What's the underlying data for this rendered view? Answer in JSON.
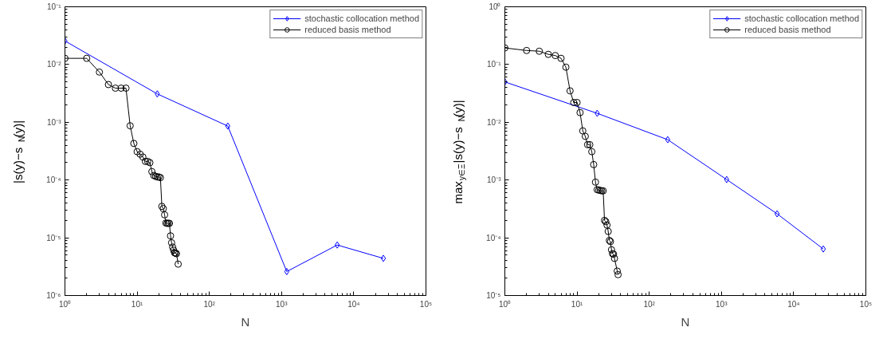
{
  "chart_data": [
    {
      "type": "line",
      "xlabel": "N",
      "ylabel": "|s(y)−s$_{N}$(y)|",
      "log": "xy",
      "grid": false,
      "legend": "top right",
      "line_style": "solid",
      "xlim": [
        1,
        100000
      ],
      "ylim": [
        1e-06,
        0.1
      ],
      "xticks": [
        {
          "value": 1,
          "label": "10⁰"
        },
        {
          "value": 10,
          "label": "10¹"
        },
        {
          "value": 100,
          "label": "10²"
        },
        {
          "value": 1000,
          "label": "10³"
        },
        {
          "value": 10000,
          "label": "10⁴"
        },
        {
          "value": 100000,
          "label": "10⁵"
        }
      ],
      "yticks": [
        {
          "value": 1e-06,
          "label": "10⁻⁶"
        },
        {
          "value": 1e-05,
          "label": "10⁻⁵"
        },
        {
          "value": 0.0001,
          "label": "10⁻⁴"
        },
        {
          "value": 0.001,
          "label": "10⁻³"
        },
        {
          "value": 0.01,
          "label": "10⁻²"
        },
        {
          "value": 0.1,
          "label": "10⁻¹"
        }
      ],
      "series": [
        {
          "name": "stochastic collocation method",
          "color": "#0000ff",
          "marker": "diamond",
          "x": [
            1,
            19,
            180,
            1180,
            5900,
            25700
          ],
          "values": [
            0.0256,
            0.0031,
            0.00086,
            2.6e-06,
            7.5e-06,
            4.4e-06
          ]
        },
        {
          "name": "reduced basis method",
          "color": "#000000",
          "marker": "circle",
          "x": [
            1,
            2,
            3,
            4,
            5,
            6,
            7,
            8,
            9,
            10,
            11,
            12,
            13,
            14,
            15,
            16,
            17,
            18,
            19,
            20,
            21,
            22,
            23,
            24,
            25,
            26,
            27,
            28,
            29,
            30,
            31,
            32,
            33,
            34,
            35,
            37
          ],
          "values": [
            0.0128,
            0.0128,
            0.0074,
            0.0045,
            0.0039,
            0.0039,
            0.0039,
            0.00087,
            0.00043,
            0.00031,
            0.00028,
            0.00025,
            0.00021,
            0.00021,
            0.0002,
            0.00014,
            0.00012,
            0.000116,
            0.000113,
            0.000113,
            0.00011,
            3.5e-05,
            3.2e-05,
            2.5e-05,
            1.8e-05,
            1.78e-05,
            1.78e-05,
            1.78e-05,
            1.08e-05,
            8.2e-06,
            6.9e-06,
            6.1e-06,
            5.5e-06,
            5.4e-06,
            5.3e-06,
            3.5e-06
          ]
        }
      ]
    },
    {
      "type": "line",
      "xlabel": "N",
      "ylabel": "max$_{y∈Ξ}$|s(y)−s$_{N}$(y)|",
      "log": "xy",
      "grid": false,
      "legend": "top right",
      "line_style": "solid",
      "xlim": [
        1,
        100000
      ],
      "ylim": [
        1e-05,
        1
      ],
      "xticks": [
        {
          "value": 1,
          "label": "10⁰"
        },
        {
          "value": 10,
          "label": "10¹"
        },
        {
          "value": 100,
          "label": "10²"
        },
        {
          "value": 1000,
          "label": "10³"
        },
        {
          "value": 10000,
          "label": "10⁴"
        },
        {
          "value": 100000,
          "label": "10⁵"
        }
      ],
      "yticks": [
        {
          "value": 1e-05,
          "label": "10⁻⁵"
        },
        {
          "value": 0.0001,
          "label": "10⁻⁴"
        },
        {
          "value": 0.001,
          "label": "10⁻³"
        },
        {
          "value": 0.01,
          "label": "10⁻²"
        },
        {
          "value": 0.1,
          "label": "10⁻¹"
        },
        {
          "value": 1,
          "label": "10⁰"
        }
      ],
      "series": [
        {
          "name": "stochastic collocation method",
          "color": "#0000ff",
          "marker": "diamond",
          "x": [
            1,
            19,
            180,
            1180,
            5900,
            25700
          ],
          "values": [
            0.05,
            0.0143,
            0.005,
            0.00102,
            0.00026,
            6.4e-05
          ]
        },
        {
          "name": "reduced basis method",
          "color": "#000000",
          "marker": "circle",
          "x": [
            1,
            2,
            3,
            4,
            5,
            6,
            7,
            8,
            9,
            10,
            11,
            12,
            13,
            14,
            15,
            16,
            17,
            18,
            19,
            20,
            21,
            22,
            23,
            24,
            25,
            26,
            27,
            28,
            29,
            30,
            31,
            32,
            33,
            36,
            37
          ],
          "values": [
            0.194,
            0.175,
            0.17,
            0.15,
            0.143,
            0.128,
            0.09,
            0.035,
            0.022,
            0.022,
            0.0147,
            0.0071,
            0.0057,
            0.0041,
            0.0041,
            0.0031,
            0.00185,
            0.00092,
            0.00068,
            0.00067,
            0.00066,
            0.00065,
            0.00065,
            0.0002,
            0.00019,
            0.000166,
            0.000129,
            9e-05,
            8.6e-05,
            6.2e-05,
            5.3e-05,
            5.2e-05,
            4.4e-05,
            2.65e-05,
            2.3e-05
          ]
        }
      ]
    }
  ]
}
